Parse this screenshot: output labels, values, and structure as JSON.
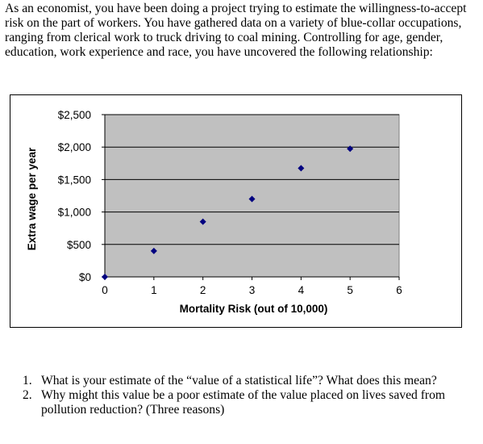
{
  "intro_text": "As an economist, you have been doing a project trying to estimate the willingness-to-accept risk on the part of workers. You have gathered data on a variety of blue-collar occupations, ranging from clerical work to truck driving to coal mining. Controlling for age, gender, education, work experience and race, you have uncovered the following relationship:",
  "chart_data": {
    "type": "scatter",
    "title": "",
    "xlabel": "Mortality Risk (out of 10,000)",
    "ylabel": "Extra wage per year",
    "xlim": [
      0,
      6
    ],
    "ylim": [
      0,
      2500
    ],
    "x_ticks": [
      "0",
      "1",
      "2",
      "3",
      "4",
      "5",
      "6"
    ],
    "y_ticks": [
      "$0",
      "$500",
      "$1,000",
      "$1,500",
      "$2,000",
      "$2,500"
    ],
    "grid": "horizontal",
    "plot_background": "#c0c0c0",
    "marker_color": "#000080",
    "points": [
      {
        "x": 0,
        "y": 0
      },
      {
        "x": 1,
        "y": 400
      },
      {
        "x": 2,
        "y": 850
      },
      {
        "x": 3,
        "y": 1200
      },
      {
        "x": 4,
        "y": 1675
      },
      {
        "x": 5,
        "y": 1975
      }
    ]
  },
  "questions": [
    {
      "num": "1.",
      "text": "What is your estimate of the “value of a statistical life”? What does this mean?"
    },
    {
      "num": "2.",
      "text": "Why might this value be a poor estimate of the value placed on lives saved from pollution reduction? (Three reasons)"
    }
  ]
}
